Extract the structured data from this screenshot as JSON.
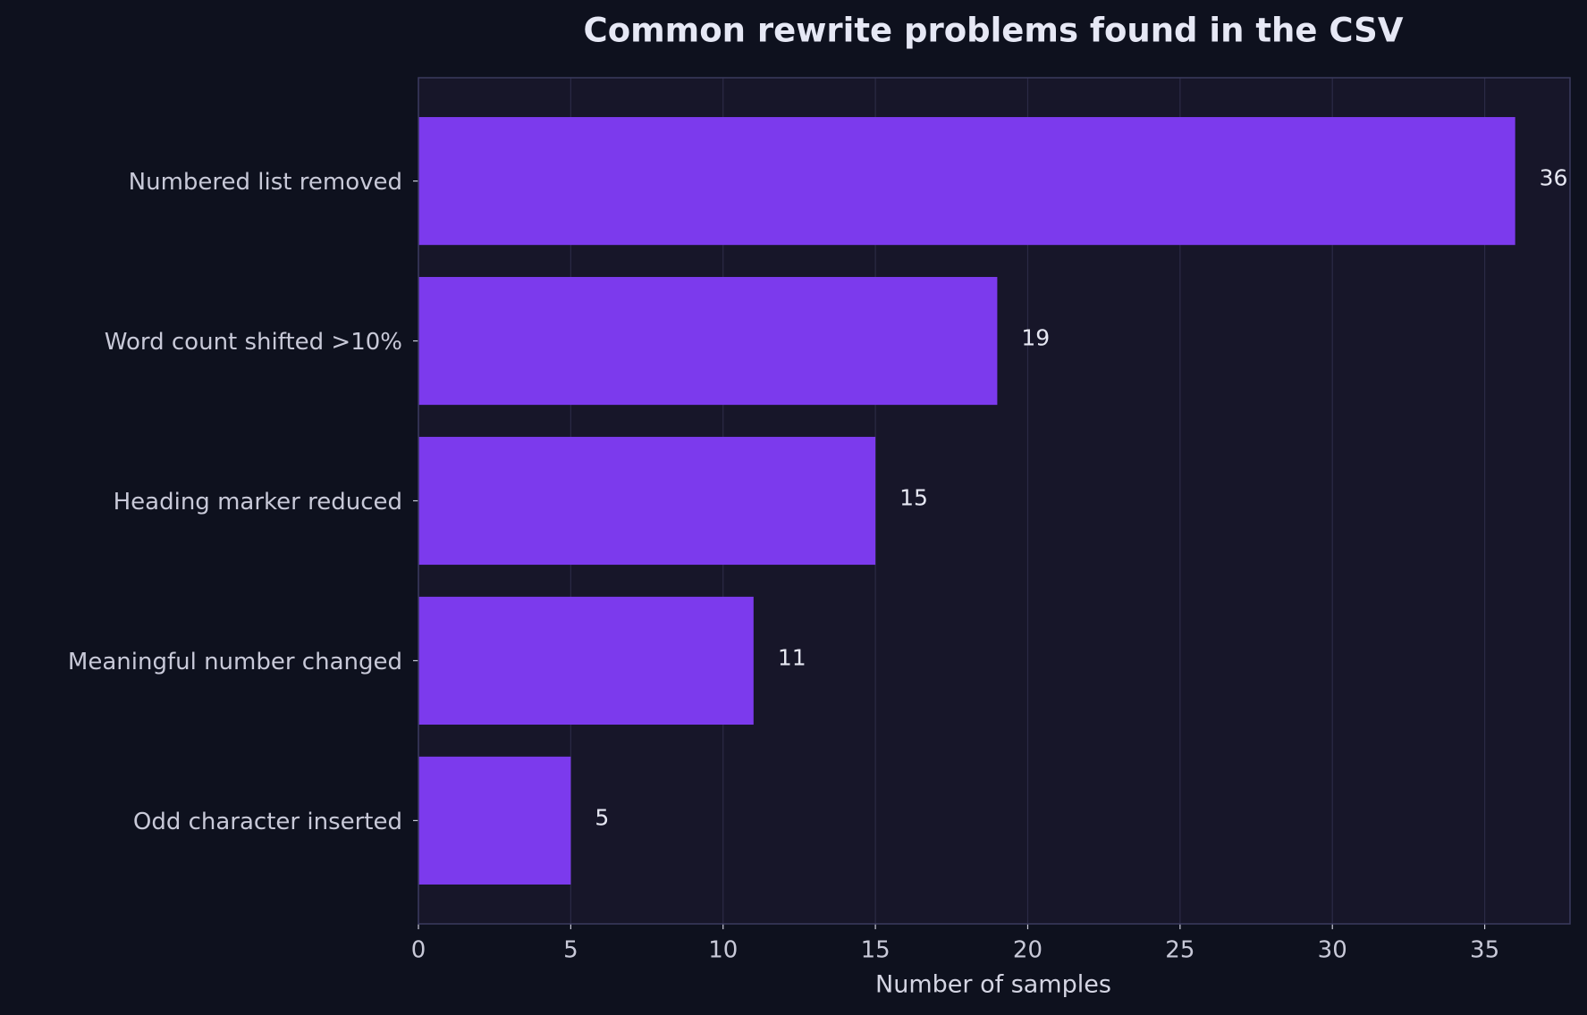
{
  "chart_data": {
    "type": "bar",
    "orientation": "horizontal",
    "title": "Common rewrite problems found in the CSV",
    "xlabel": "Number of samples",
    "categories": [
      "Numbered list removed",
      "Word count shifted >10%",
      "Heading marker reduced",
      "Meaningful number changed",
      "Odd character inserted"
    ],
    "values": [
      36,
      19,
      15,
      11,
      5
    ],
    "color": "#7c3aed",
    "xlim": [
      0,
      37.8
    ],
    "xticks": [
      0,
      5,
      10,
      15,
      20,
      25,
      30,
      35
    ],
    "grid": true
  }
}
